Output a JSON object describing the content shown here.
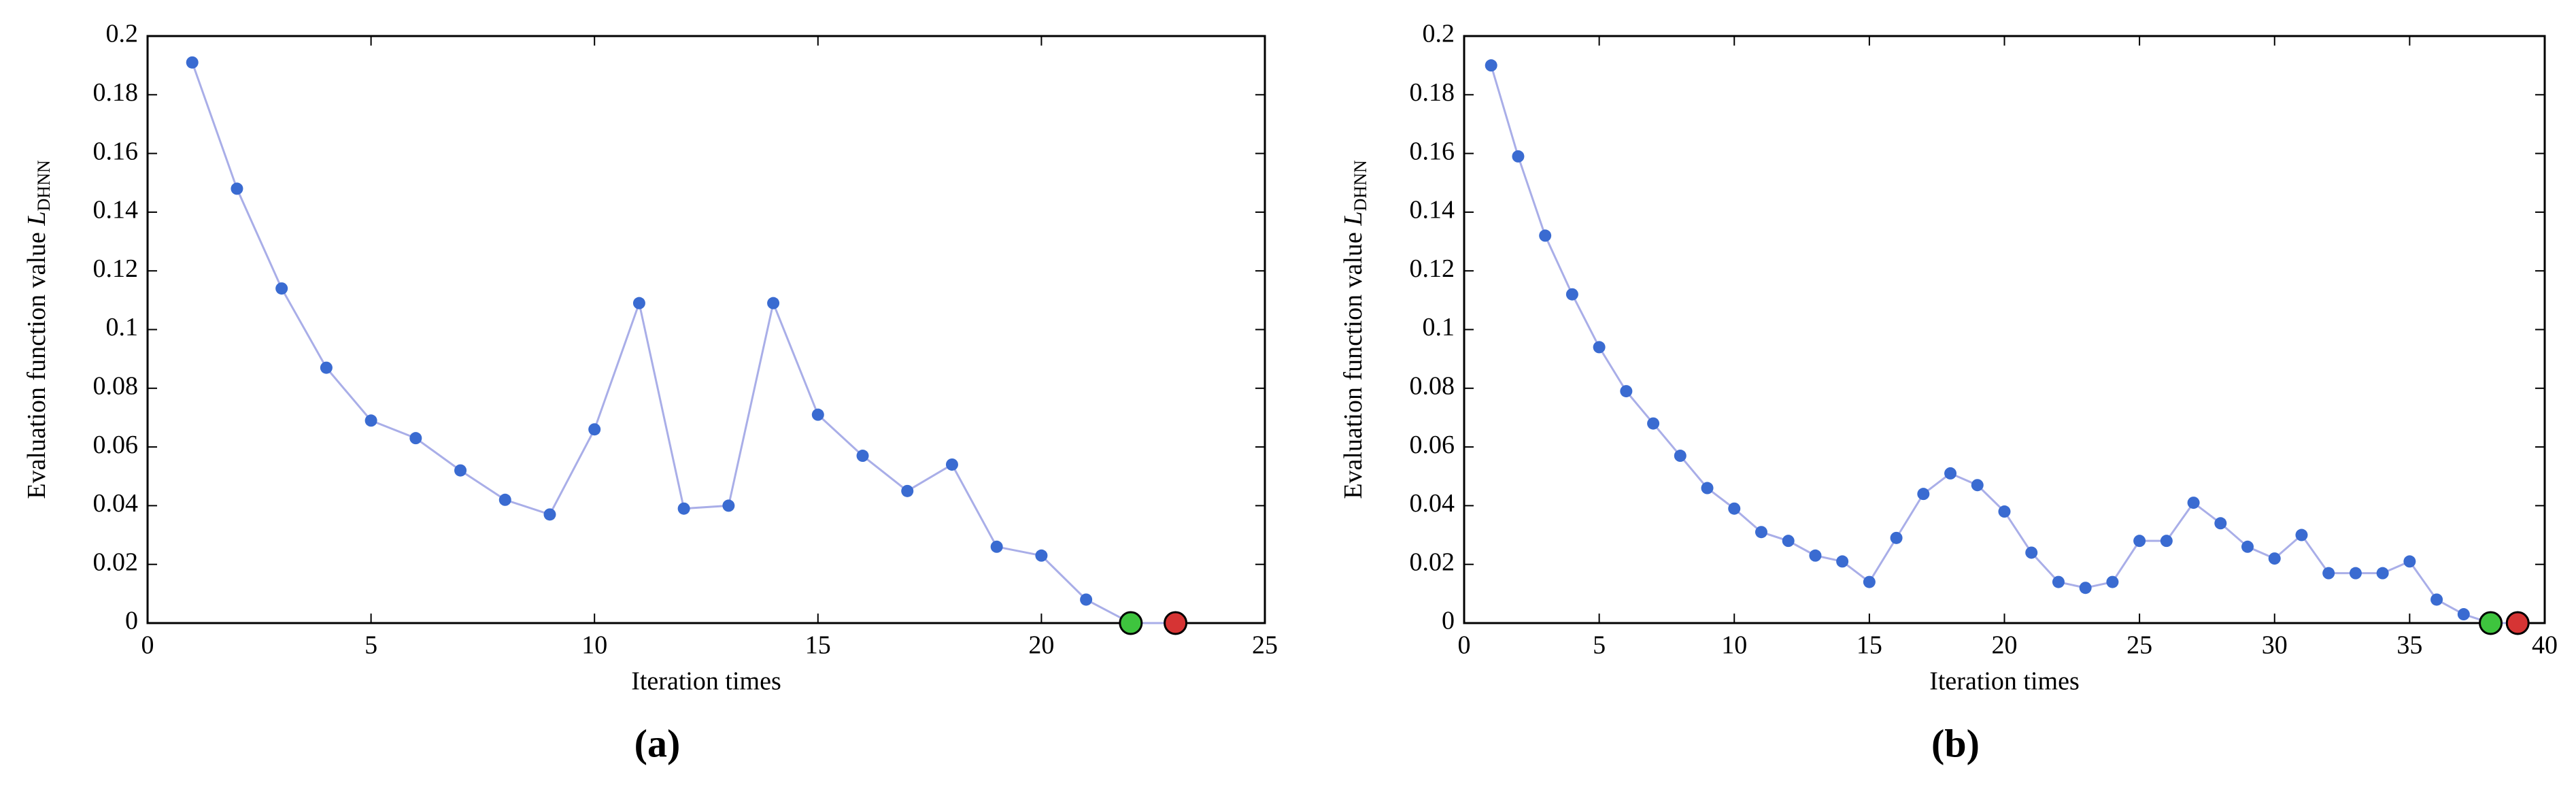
{
  "chart_data": [
    {
      "type": "line",
      "label": "(a)",
      "xlabel": "Iteration times",
      "ylabel": "Evaluation function value ",
      "ylabel_symbol": "L",
      "ylabel_subscript": "DHNN",
      "x": [
        1,
        2,
        3,
        4,
        5,
        6,
        7,
        8,
        9,
        10,
        11,
        12,
        13,
        14,
        15,
        16,
        17,
        18,
        19,
        20,
        21,
        22,
        23
      ],
      "series": [
        {
          "color": "#a9aee8",
          "marker_color": "#3a6bd1",
          "values": [
            0.191,
            0.148,
            0.114,
            0.087,
            0.069,
            0.063,
            0.052,
            0.042,
            0.037,
            0.066,
            0.109,
            0.039,
            0.04,
            0.109,
            0.071,
            0.057,
            0.045,
            0.054,
            0.026,
            0.023,
            0.008,
            0,
            0
          ],
          "marker_colors": [
            "#3a6bd1",
            "#3a6bd1",
            "#3a6bd1",
            "#3a6bd1",
            "#3a6bd1",
            "#3a6bd1",
            "#3a6bd1",
            "#3a6bd1",
            "#3a6bd1",
            "#3a6bd1",
            "#3a6bd1",
            "#3a6bd1",
            "#3a6bd1",
            "#3a6bd1",
            "#3a6bd1",
            "#3a6bd1",
            "#3a6bd1",
            "#3a6bd1",
            "#3a6bd1",
            "#3a6bd1",
            "#3a6bd1",
            "#3ec43e",
            "#d63434"
          ]
        }
      ],
      "xlim": [
        0,
        25
      ],
      "xticks": [
        0,
        5,
        10,
        15,
        20,
        25
      ],
      "ylim": [
        0,
        0.2
      ],
      "yticks": [
        0,
        0.02,
        0.04,
        0.06,
        0.08,
        0.1,
        0.12,
        0.14,
        0.16,
        0.18,
        0.2
      ]
    },
    {
      "type": "line",
      "label": "(b)",
      "xlabel": "Iteration times",
      "ylabel": "Evaluation function value ",
      "ylabel_symbol": "L",
      "ylabel_subscript": "DHNN",
      "x": [
        1,
        2,
        3,
        4,
        5,
        6,
        7,
        8,
        9,
        10,
        11,
        12,
        13,
        14,
        15,
        16,
        17,
        18,
        19,
        20,
        21,
        22,
        23,
        24,
        25,
        26,
        27,
        28,
        29,
        30,
        31,
        32,
        33,
        34,
        35,
        36,
        37,
        38,
        39
      ],
      "series": [
        {
          "color": "#a9aee8",
          "marker_color": "#3a6bd1",
          "values": [
            0.19,
            0.159,
            0.132,
            0.112,
            0.094,
            0.079,
            0.068,
            0.057,
            0.046,
            0.039,
            0.031,
            0.028,
            0.023,
            0.021,
            0.014,
            0.029,
            0.044,
            0.051,
            0.047,
            0.038,
            0.024,
            0.014,
            0.012,
            0.014,
            0.028,
            0.028,
            0.041,
            0.034,
            0.026,
            0.022,
            0.03,
            0.017,
            0.017,
            0.017,
            0.021,
            0.008,
            0.003,
            0,
            0
          ],
          "marker_colors": [
            "#3a6bd1",
            "#3a6bd1",
            "#3a6bd1",
            "#3a6bd1",
            "#3a6bd1",
            "#3a6bd1",
            "#3a6bd1",
            "#3a6bd1",
            "#3a6bd1",
            "#3a6bd1",
            "#3a6bd1",
            "#3a6bd1",
            "#3a6bd1",
            "#3a6bd1",
            "#3a6bd1",
            "#3a6bd1",
            "#3a6bd1",
            "#3a6bd1",
            "#3a6bd1",
            "#3a6bd1",
            "#3a6bd1",
            "#3a6bd1",
            "#3a6bd1",
            "#3a6bd1",
            "#3a6bd1",
            "#3a6bd1",
            "#3a6bd1",
            "#3a6bd1",
            "#3a6bd1",
            "#3a6bd1",
            "#3a6bd1",
            "#3a6bd1",
            "#3a6bd1",
            "#3a6bd1",
            "#3a6bd1",
            "#3a6bd1",
            "#3a6bd1",
            "#3ec43e",
            "#d63434"
          ]
        }
      ],
      "xlim": [
        0,
        40
      ],
      "xticks": [
        0,
        5,
        10,
        15,
        20,
        25,
        30,
        35,
        40
      ],
      "ylim": [
        0,
        0.2
      ],
      "yticks": [
        0,
        0.02,
        0.04,
        0.06,
        0.08,
        0.1,
        0.12,
        0.14,
        0.16,
        0.18,
        0.2
      ]
    }
  ]
}
